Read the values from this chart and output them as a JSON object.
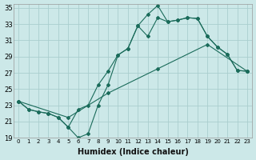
{
  "xlabel": "Humidex (Indice chaleur)",
  "bg_color": "#cce8e8",
  "grid_color": "#aacece",
  "line_color": "#1a6b5a",
  "xlim_min": -0.5,
  "xlim_max": 23.5,
  "ylim_min": 19,
  "ylim_max": 35.5,
  "xticks": [
    0,
    1,
    2,
    3,
    4,
    5,
    6,
    7,
    8,
    9,
    10,
    11,
    12,
    13,
    14,
    15,
    16,
    17,
    18,
    19,
    20,
    21,
    22,
    23
  ],
  "yticks": [
    19,
    21,
    23,
    25,
    27,
    29,
    31,
    33,
    35
  ],
  "line1_x": [
    0,
    1,
    2,
    3,
    4,
    5,
    6,
    7,
    8,
    9,
    10,
    11,
    12,
    13,
    14,
    15,
    16,
    17,
    18,
    19,
    20,
    21,
    22,
    23
  ],
  "line1_y": [
    23.5,
    22.5,
    22.2,
    22.0,
    21.5,
    20.3,
    19.0,
    19.5,
    23.0,
    25.5,
    29.2,
    30.0,
    32.8,
    34.2,
    35.3,
    33.3,
    33.5,
    33.8,
    33.7,
    31.5,
    30.2,
    29.3,
    27.3,
    27.2
  ],
  "line2_x": [
    0,
    1,
    2,
    3,
    4,
    5,
    6,
    7,
    8,
    9,
    10,
    11,
    12,
    13,
    14,
    15,
    16,
    17,
    18,
    19,
    20,
    21,
    22,
    23
  ],
  "line2_y": [
    23.5,
    22.5,
    22.2,
    22.0,
    21.5,
    20.3,
    22.5,
    23.0,
    25.5,
    27.2,
    29.2,
    30.0,
    32.8,
    31.5,
    33.8,
    33.3,
    33.5,
    33.8,
    33.7,
    31.5,
    30.2,
    29.3,
    27.3,
    27.2
  ],
  "line3_x": [
    0,
    5,
    9,
    14,
    19,
    23
  ],
  "line3_y": [
    23.5,
    21.5,
    24.5,
    27.5,
    30.5,
    27.2
  ]
}
